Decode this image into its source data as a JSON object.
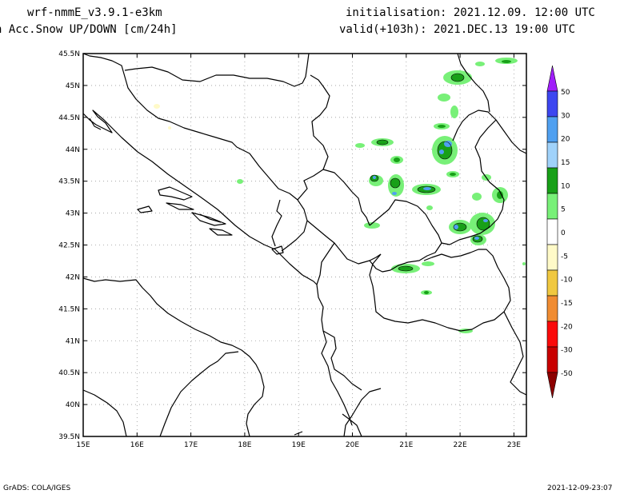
{
  "header": {
    "model": "wrf-nmmE_v3.9.1-e3km",
    "field": "h Acc.Snow UP/DOWN [cm/24h]",
    "init": "initialisation: 2021.12.09.  12:00 UTC",
    "valid": "valid(+103h): 2021.DEC.13 19:00 UTC"
  },
  "footer": {
    "credit": "GrADS: COLA/IGES",
    "timestamp": "2021-12-09-23:07"
  },
  "axes": {
    "lat_labels": [
      "45.5N",
      "45N",
      "44.5N",
      "44N",
      "43.5N",
      "43N",
      "42.5N",
      "42N",
      "41.5N",
      "41N",
      "40.5N",
      "40N",
      "39.5N"
    ],
    "lon_labels": [
      "15E",
      "16E",
      "17E",
      "18E",
      "19E",
      "20E",
      "21E",
      "22E",
      "23E"
    ]
  },
  "legend": {
    "levels": [
      "50",
      "30",
      "20",
      "15",
      "10",
      "5",
      "0",
      "-5",
      "-10",
      "-15",
      "-20",
      "-30",
      "-50"
    ],
    "colors": [
      "#a01efa",
      "#3c46f0",
      "#50a0f0",
      "#a0d2fa",
      "#18a018",
      "#78f078",
      "#ffffff",
      "#fffac8",
      "#f0c840",
      "#f08c32",
      "#fa0a0a",
      "#c80000",
      "#8c0000"
    ],
    "top_cap_color": "#a01efa",
    "bottom_cap_color": "#8c0000"
  }
}
